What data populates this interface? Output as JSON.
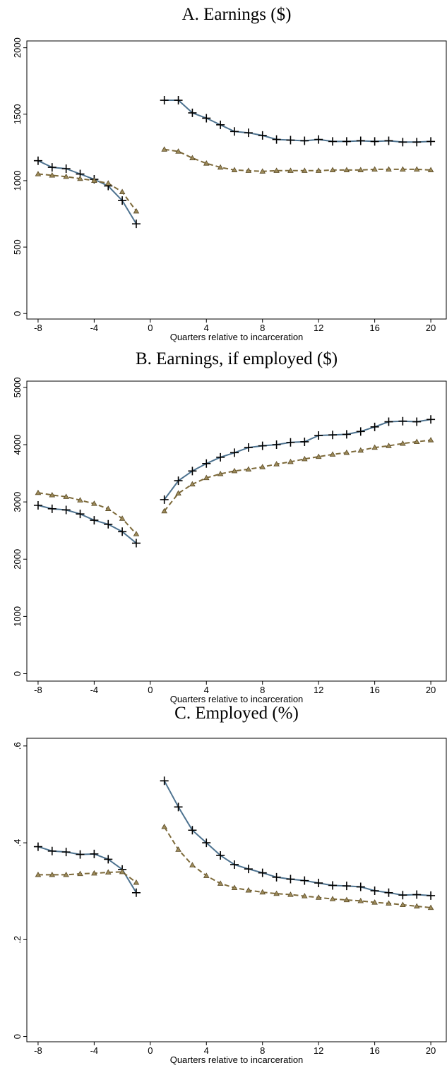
{
  "chart_data": [
    {
      "type": "line",
      "title": "A. Earnings ($)",
      "xlabel": "Quarters relative to incarceration",
      "ylabel": "",
      "xlim": [
        -8.5,
        20.5
      ],
      "ylim": [
        -20,
        2030
      ],
      "xticks": [
        -8,
        -4,
        0,
        4,
        8,
        12,
        16,
        20
      ],
      "yticks": [
        0,
        500,
        1000,
        1500,
        2000
      ],
      "grid": false,
      "legend": "none",
      "series": [
        {
          "marker": "plus",
          "color": "#4e7390",
          "dash": "solid",
          "segments": [
            {
              "x": [
                -8,
                -7,
                -6,
                -5,
                -4,
                -3,
                -2,
                -1
              ],
              "y": [
                1150,
                1100,
                1090,
                1050,
                1010,
                960,
                850,
                675
              ]
            },
            {
              "x": [
                1,
                2,
                3,
                4,
                5,
                6,
                7,
                8,
                9,
                10,
                11,
                12,
                13,
                14,
                15,
                16,
                17,
                18,
                19,
                20
              ],
              "y": [
                1605,
                1605,
                1510,
                1470,
                1420,
                1370,
                1360,
                1340,
                1310,
                1305,
                1300,
                1310,
                1295,
                1295,
                1300,
                1295,
                1300,
                1290,
                1290,
                1295
              ]
            }
          ]
        },
        {
          "marker": "triangle",
          "color": "#7d6a3a",
          "dash": "dashed",
          "segments": [
            {
              "x": [
                -8,
                -7,
                -6,
                -5,
                -4,
                -3,
                -2,
                -1
              ],
              "y": [
                1050,
                1040,
                1030,
                1015,
                1000,
                980,
                915,
                770
              ]
            },
            {
              "x": [
                1,
                2,
                3,
                4,
                5,
                6,
                7,
                8,
                9,
                10,
                11,
                12,
                13,
                14,
                15,
                16,
                17,
                18,
                19,
                20
              ],
              "y": [
                1235,
                1220,
                1170,
                1130,
                1100,
                1080,
                1075,
                1070,
                1075,
                1075,
                1075,
                1075,
                1080,
                1080,
                1080,
                1085,
                1085,
                1085,
                1085,
                1080
              ]
            }
          ]
        }
      ]
    },
    {
      "type": "line",
      "title": "B. Earnings, if employed ($)",
      "xlabel": "Quarters relative to incarceration",
      "ylabel": "",
      "xlim": [
        -8.5,
        20.5
      ],
      "ylim": [
        -80,
        5060
      ],
      "xticks": [
        -8,
        -4,
        0,
        4,
        8,
        12,
        16,
        20
      ],
      "yticks": [
        0,
        1000,
        2000,
        3000,
        4000,
        5000
      ],
      "grid": false,
      "legend": "none",
      "series": [
        {
          "marker": "plus",
          "color": "#4e7390",
          "dash": "solid",
          "segments": [
            {
              "x": [
                -8,
                -7,
                -6,
                -5,
                -4,
                -3,
                -2,
                -1
              ],
              "y": [
                2940,
                2880,
                2860,
                2790,
                2680,
                2610,
                2480,
                2280
              ]
            },
            {
              "x": [
                1,
                2,
                3,
                4,
                5,
                6,
                7,
                8,
                9,
                10,
                11,
                12,
                13,
                14,
                15,
                16,
                17,
                18,
                19,
                20
              ],
              "y": [
                3040,
                3370,
                3540,
                3670,
                3780,
                3860,
                3950,
                3980,
                4000,
                4040,
                4050,
                4160,
                4170,
                4180,
                4230,
                4310,
                4400,
                4410,
                4400,
                4440
              ]
            }
          ]
        },
        {
          "marker": "triangle",
          "color": "#7d6a3a",
          "dash": "dashed",
          "segments": [
            {
              "x": [
                -8,
                -7,
                -6,
                -5,
                -4,
                -3,
                -2,
                -1
              ],
              "y": [
                3160,
                3120,
                3090,
                3030,
                2970,
                2880,
                2710,
                2440
              ]
            },
            {
              "x": [
                1,
                2,
                3,
                4,
                5,
                6,
                7,
                8,
                9,
                10,
                11,
                12,
                13,
                14,
                15,
                16,
                17,
                18,
                19,
                20
              ],
              "y": [
                2840,
                3150,
                3310,
                3420,
                3490,
                3540,
                3570,
                3610,
                3660,
                3700,
                3750,
                3790,
                3830,
                3860,
                3900,
                3950,
                3980,
                4020,
                4050,
                4080
              ]
            }
          ]
        }
      ]
    },
    {
      "type": "line",
      "title": "C. Employed (%)",
      "xlabel": "Quarters relative to incarceration",
      "ylabel": "",
      "xlim": [
        -8.5,
        20.5
      ],
      "ylim": [
        -0.005,
        0.61
      ],
      "xticks": [
        -8,
        -4,
        0,
        4,
        8,
        12,
        16,
        20
      ],
      "yticks": [
        0,
        0.2,
        0.4,
        0.6
      ],
      "yticklabels": [
        "0",
        ".2",
        ".4",
        ".6"
      ],
      "grid": false,
      "legend": "none",
      "series": [
        {
          "marker": "plus",
          "color": "#4e7390",
          "dash": "solid",
          "segments": [
            {
              "x": [
                -8,
                -7,
                -6,
                -5,
                -4,
                -3,
                -2,
                -1
              ],
              "y": [
                0.392,
                0.383,
                0.381,
                0.376,
                0.377,
                0.366,
                0.345,
                0.297
              ]
            },
            {
              "x": [
                1,
                2,
                3,
                4,
                5,
                6,
                7,
                8,
                9,
                10,
                11,
                12,
                13,
                14,
                15,
                16,
                17,
                18,
                19,
                20
              ],
              "y": [
                0.528,
                0.474,
                0.426,
                0.4,
                0.374,
                0.355,
                0.346,
                0.338,
                0.329,
                0.325,
                0.322,
                0.317,
                0.312,
                0.311,
                0.309,
                0.301,
                0.297,
                0.292,
                0.293,
                0.291
              ]
            }
          ]
        },
        {
          "marker": "triangle",
          "color": "#7d6a3a",
          "dash": "dashed",
          "segments": [
            {
              "x": [
                -8,
                -7,
                -6,
                -5,
                -4,
                -3,
                -2,
                -1
              ],
              "y": [
                0.334,
                0.334,
                0.334,
                0.336,
                0.337,
                0.339,
                0.34,
                0.318
              ]
            },
            {
              "x": [
                1,
                2,
                3,
                4,
                5,
                6,
                7,
                8,
                9,
                10,
                11,
                12,
                13,
                14,
                15,
                16,
                17,
                18,
                19,
                20
              ],
              "y": [
                0.433,
                0.386,
                0.354,
                0.332,
                0.316,
                0.307,
                0.302,
                0.298,
                0.295,
                0.293,
                0.29,
                0.287,
                0.284,
                0.282,
                0.28,
                0.277,
                0.275,
                0.272,
                0.269,
                0.266
              ]
            }
          ]
        }
      ]
    }
  ]
}
